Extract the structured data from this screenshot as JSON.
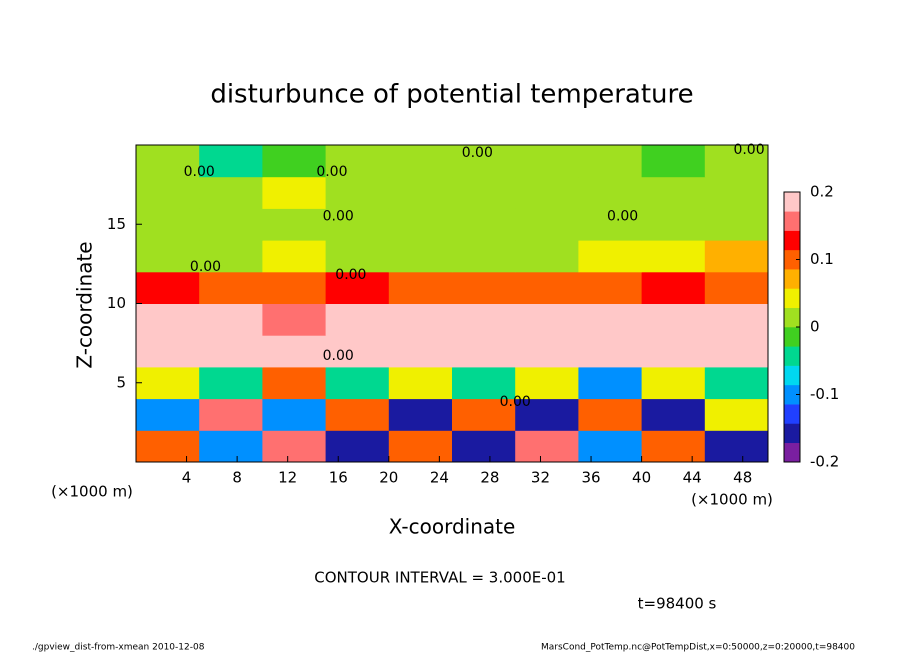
{
  "chart_data": {
    "type": "heatmap",
    "title": "disturbunce of potential temperature",
    "xlabel": "X-coordinate",
    "ylabel": "Z-coordinate",
    "x_unit": "(×1000 m)",
    "y_unit": "(×1000 m)",
    "contour_interval": "CONTOUR INTERVAL = 3.000E-01",
    "time_label": "t=98400 s",
    "footer_left": "./gpview_dist-from-xmean  2010-12-08",
    "footer_right": "MarsCond_PotTemp.nc@PotTempDist,x=0:50000,z=0:20000,t=98400",
    "xlim": [
      0,
      50
    ],
    "ylim": [
      0,
      20
    ],
    "xticks": [
      4,
      8,
      12,
      16,
      20,
      24,
      28,
      32,
      36,
      40,
      44,
      48
    ],
    "yticks": [
      5,
      10,
      15
    ],
    "x_edges": [
      0,
      5,
      10,
      15,
      20,
      25,
      30,
      35,
      40,
      45,
      50
    ],
    "y_edges": [
      0,
      2,
      4,
      6,
      8,
      10,
      12,
      14,
      16,
      18,
      20
    ],
    "z": [
      [
        0.1,
        -0.1,
        0.15,
        -0.15,
        0.1,
        -0.15,
        0.15,
        -0.1,
        0.1,
        -0.15
      ],
      [
        -0.1,
        0.15,
        -0.1,
        0.1,
        -0.15,
        0.1,
        -0.15,
        0.1,
        -0.15,
        0.05
      ],
      [
        0.05,
        -0.05,
        0.1,
        -0.05,
        0.05,
        -0.05,
        0.05,
        -0.1,
        0.05,
        -0.05
      ],
      [
        0.2,
        0.2,
        0.19,
        0.2,
        0.2,
        0.19,
        0.2,
        0.2,
        0.19,
        0.2
      ],
      [
        0.18,
        0.2,
        0.15,
        0.18,
        0.2,
        0.19,
        0.18,
        0.2,
        0.2,
        0.19
      ],
      [
        0.12,
        0.11,
        0.1,
        0.12,
        0.1,
        0.09,
        0.11,
        0.1,
        0.12,
        0.11
      ],
      [
        0.02,
        0.01,
        0.03,
        0.02,
        0.01,
        0.02,
        0.02,
        0.04,
        0.05,
        0.06
      ],
      [
        0,
        0.01,
        0,
        0,
        0.01,
        0,
        0,
        0.01,
        0,
        0.02
      ],
      [
        0.01,
        0.02,
        0.03,
        0.01,
        0.02,
        0.01,
        0.02,
        0.01,
        0.01,
        0
      ],
      [
        0,
        -0.05,
        -0.02,
        0,
        0,
        0,
        0,
        0,
        -0.02,
        0
      ]
    ],
    "clim": [
      -0.2,
      0.2
    ],
    "cticks": [
      -0.2,
      -0.1,
      0,
      0.1,
      0.2
    ],
    "colormap": [
      "#7a1fa0",
      "#1a1aa0",
      "#2040ff",
      "#0090ff",
      "#00d8f0",
      "#00d890",
      "#40d020",
      "#a0e020",
      "#f0f000",
      "#ffb000",
      "#ff6000",
      "#ff0000",
      "#ff7070",
      "#ffc8c8"
    ],
    "annotations": [
      {
        "text": "0.00",
        "x": 27,
        "z": 19.5
      },
      {
        "text": "0.00",
        "x": 5,
        "z": 18.3
      },
      {
        "text": "0.00",
        "x": 15.5,
        "z": 18.3
      },
      {
        "text": "0.00",
        "x": 16,
        "z": 15.5
      },
      {
        "text": "0.00",
        "x": 38.5,
        "z": 15.5
      },
      {
        "text": "0.00",
        "x": 48.5,
        "z": 19.7
      },
      {
        "text": "0.00",
        "x": 5.5,
        "z": 12.3
      },
      {
        "text": "0.00",
        "x": 17,
        "z": 11.8
      },
      {
        "text": "0.00",
        "x": 16,
        "z": 6.7
      },
      {
        "text": "0.00",
        "x": 30,
        "z": 3.8
      }
    ]
  }
}
